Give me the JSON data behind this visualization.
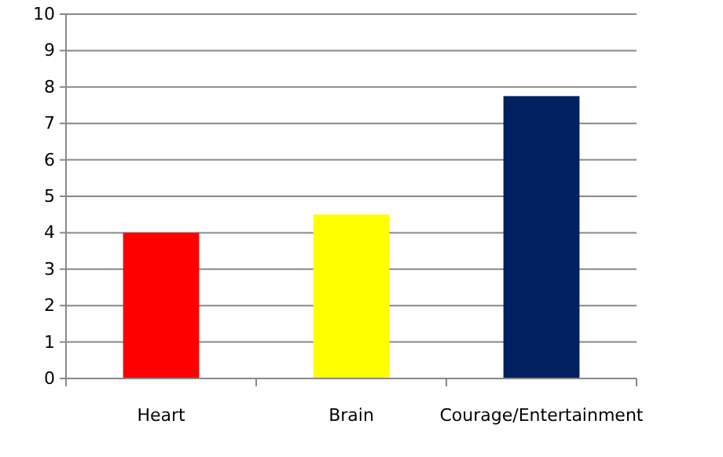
{
  "chart_data": {
    "type": "bar",
    "categories": [
      "Heart",
      "Brain",
      "Courage/Entertainment"
    ],
    "values": [
      4,
      4.5,
      7.75
    ],
    "colors": [
      "#ff0000",
      "#ffff00",
      "#002060"
    ],
    "ylim": [
      0,
      10
    ],
    "yticks": [
      0,
      1,
      2,
      3,
      4,
      5,
      6,
      7,
      8,
      9,
      10
    ],
    "grid": "y"
  }
}
